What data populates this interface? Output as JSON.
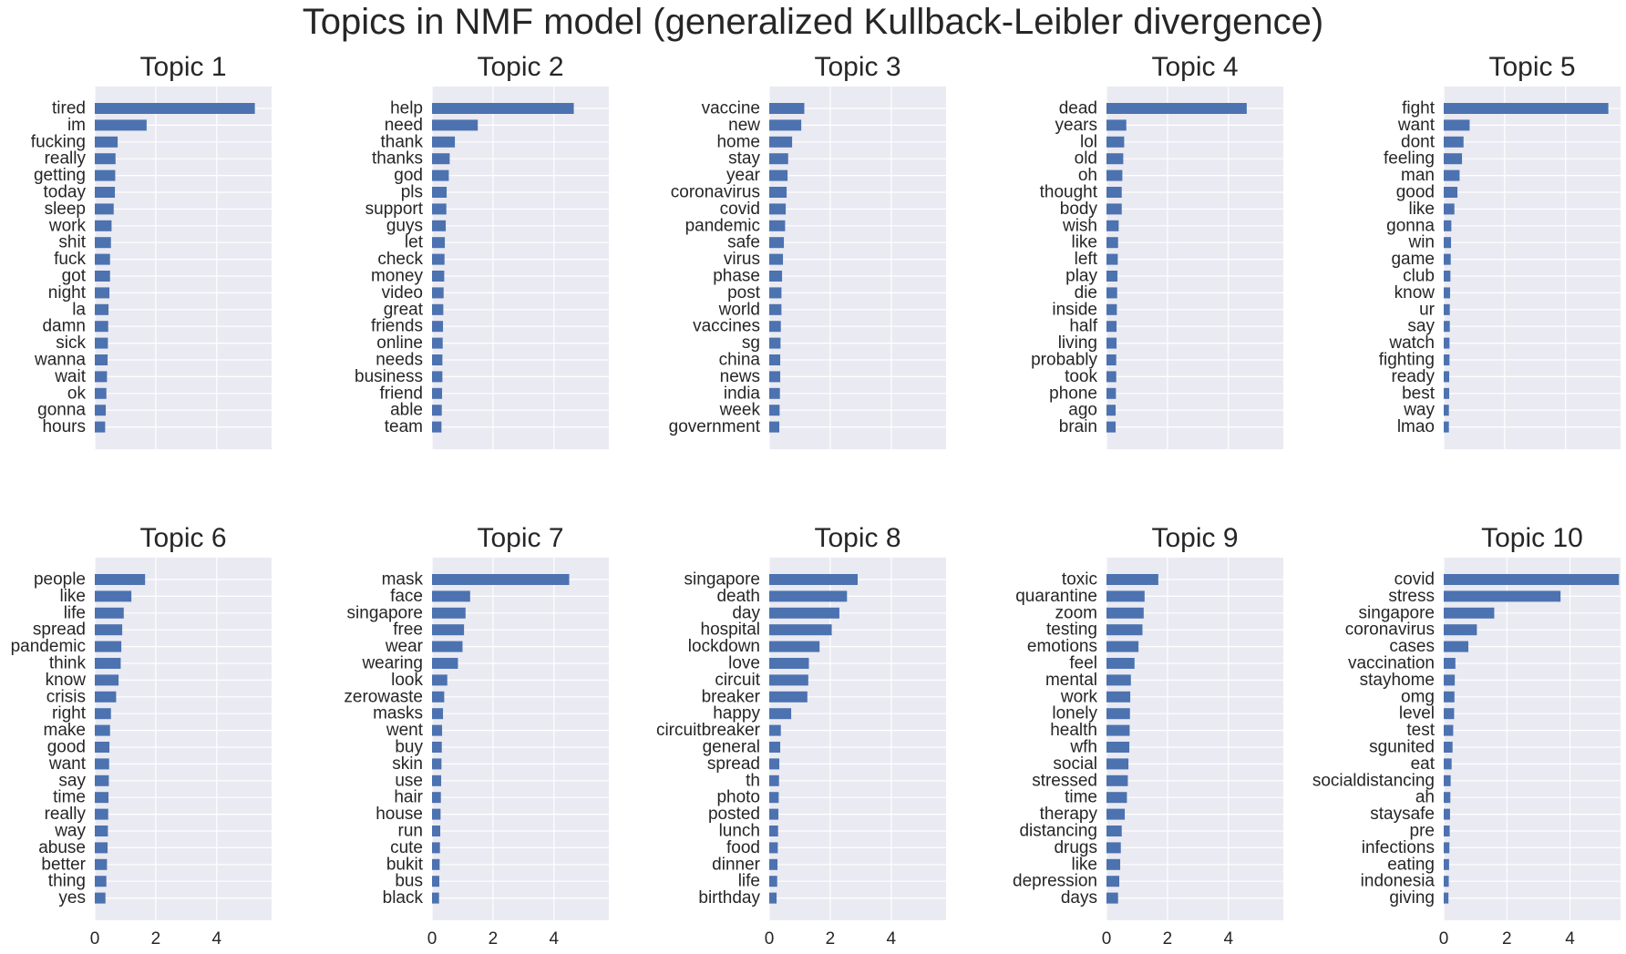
{
  "figure": {
    "title": "Topics in NMF model (generalized Kullback-Leibler divergence)"
  },
  "style": {
    "bar_color": "#4c72b0",
    "panel_bg": "#eaeaf2",
    "grid_color": "#ffffff",
    "text_color": "#262626"
  },
  "chart_data": [
    {
      "type": "bar",
      "orientation": "horizontal",
      "title": "Topic 1",
      "xlim": [
        0,
        5.8
      ],
      "grid": true,
      "x_ticks": [
        0,
        2,
        4
      ],
      "show_x_tick_labels": false,
      "categories": [
        "tired",
        "im",
        "fucking",
        "really",
        "getting",
        "today",
        "sleep",
        "work",
        "shit",
        "fuck",
        "got",
        "night",
        "la",
        "damn",
        "sick",
        "wanna",
        "wait",
        "ok",
        "gonna",
        "hours"
      ],
      "values": [
        5.25,
        1.7,
        0.75,
        0.68,
        0.67,
        0.66,
        0.62,
        0.55,
        0.53,
        0.5,
        0.5,
        0.48,
        0.45,
        0.44,
        0.43,
        0.42,
        0.4,
        0.38,
        0.36,
        0.34
      ]
    },
    {
      "type": "bar",
      "orientation": "horizontal",
      "title": "Topic 2",
      "xlim": [
        0,
        5.8
      ],
      "grid": true,
      "x_ticks": [
        0,
        2,
        4
      ],
      "show_x_tick_labels": false,
      "categories": [
        "help",
        "need",
        "thank",
        "thanks",
        "god",
        "pls",
        "support",
        "guys",
        "let",
        "check",
        "money",
        "video",
        "great",
        "friends",
        "online",
        "needs",
        "business",
        "friend",
        "able",
        "team"
      ],
      "values": [
        4.65,
        1.5,
        0.75,
        0.58,
        0.55,
        0.48,
        0.47,
        0.45,
        0.42,
        0.41,
        0.4,
        0.38,
        0.37,
        0.36,
        0.35,
        0.34,
        0.34,
        0.33,
        0.32,
        0.31
      ]
    },
    {
      "type": "bar",
      "orientation": "horizontal",
      "title": "Topic 3",
      "xlim": [
        0,
        5.8
      ],
      "grid": true,
      "x_ticks": [
        0,
        2,
        4
      ],
      "show_x_tick_labels": false,
      "categories": [
        "vaccine",
        "new",
        "home",
        "stay",
        "year",
        "coronavirus",
        "covid",
        "pandemic",
        "safe",
        "virus",
        "phase",
        "post",
        "world",
        "vaccines",
        "sg",
        "china",
        "news",
        "india",
        "week",
        "government"
      ],
      "values": [
        1.15,
        1.05,
        0.75,
        0.62,
        0.6,
        0.57,
        0.54,
        0.52,
        0.48,
        0.45,
        0.42,
        0.4,
        0.4,
        0.38,
        0.37,
        0.36,
        0.36,
        0.35,
        0.34,
        0.33
      ]
    },
    {
      "type": "bar",
      "orientation": "horizontal",
      "title": "Topic 4",
      "xlim": [
        0,
        5.8
      ],
      "grid": true,
      "x_ticks": [
        0,
        2,
        4
      ],
      "show_x_tick_labels": false,
      "categories": [
        "dead",
        "years",
        "lol",
        "old",
        "oh",
        "thought",
        "body",
        "wish",
        "like",
        "left",
        "play",
        "die",
        "inside",
        "half",
        "living",
        "probably",
        "took",
        "phone",
        "ago",
        "brain"
      ],
      "values": [
        4.6,
        0.65,
        0.58,
        0.55,
        0.52,
        0.5,
        0.5,
        0.4,
        0.38,
        0.37,
        0.36,
        0.35,
        0.34,
        0.33,
        0.33,
        0.32,
        0.32,
        0.31,
        0.3,
        0.3
      ]
    },
    {
      "type": "bar",
      "orientation": "horizontal",
      "title": "Topic 5",
      "xlim": [
        0,
        5.8
      ],
      "grid": true,
      "x_ticks": [
        0,
        2,
        4
      ],
      "show_x_tick_labels": false,
      "categories": [
        "fight",
        "want",
        "dont",
        "feeling",
        "man",
        "good",
        "like",
        "gonna",
        "win",
        "game",
        "club",
        "know",
        "ur",
        "say",
        "watch",
        "fighting",
        "ready",
        "best",
        "way",
        "lmao"
      ],
      "values": [
        5.4,
        0.85,
        0.65,
        0.6,
        0.52,
        0.45,
        0.35,
        0.25,
        0.24,
        0.23,
        0.22,
        0.21,
        0.2,
        0.2,
        0.19,
        0.19,
        0.18,
        0.18,
        0.17,
        0.17
      ]
    },
    {
      "type": "bar",
      "orientation": "horizontal",
      "title": "Topic 6",
      "xlim": [
        0,
        5.8
      ],
      "grid": true,
      "x_ticks": [
        0,
        2,
        4
      ],
      "show_x_tick_labels": true,
      "categories": [
        "people",
        "like",
        "life",
        "spread",
        "pandemic",
        "think",
        "know",
        "crisis",
        "right",
        "make",
        "good",
        "want",
        "say",
        "time",
        "really",
        "way",
        "abuse",
        "better",
        "thing",
        "yes"
      ],
      "values": [
        1.65,
        1.2,
        0.95,
        0.9,
        0.87,
        0.85,
        0.78,
        0.7,
        0.53,
        0.5,
        0.48,
        0.47,
        0.46,
        0.45,
        0.44,
        0.43,
        0.42,
        0.4,
        0.38,
        0.35
      ]
    },
    {
      "type": "bar",
      "orientation": "horizontal",
      "title": "Topic 7",
      "xlim": [
        0,
        5.8
      ],
      "grid": true,
      "x_ticks": [
        0,
        2,
        4
      ],
      "show_x_tick_labels": true,
      "categories": [
        "mask",
        "face",
        "singapore",
        "free",
        "wear",
        "wearing",
        "look",
        "zerowaste",
        "masks",
        "went",
        "buy",
        "skin",
        "use",
        "hair",
        "house",
        "run",
        "cute",
        "bukit",
        "bus",
        "black"
      ],
      "values": [
        4.5,
        1.25,
        1.1,
        1.05,
        1.0,
        0.85,
        0.5,
        0.4,
        0.36,
        0.33,
        0.32,
        0.31,
        0.3,
        0.29,
        0.28,
        0.27,
        0.26,
        0.25,
        0.24,
        0.23
      ]
    },
    {
      "type": "bar",
      "orientation": "horizontal",
      "title": "Topic 8",
      "xlim": [
        0,
        5.8
      ],
      "grid": true,
      "x_ticks": [
        0,
        2,
        4
      ],
      "show_x_tick_labels": true,
      "categories": [
        "singapore",
        "death",
        "day",
        "hospital",
        "lockdown",
        "love",
        "circuit",
        "breaker",
        "happy",
        "circuitbreaker",
        "general",
        "spread",
        "th",
        "photo",
        "posted",
        "lunch",
        "food",
        "dinner",
        "life",
        "birthday"
      ],
      "values": [
        2.9,
        2.55,
        2.3,
        2.05,
        1.65,
        1.3,
        1.28,
        1.25,
        0.72,
        0.38,
        0.36,
        0.33,
        0.32,
        0.31,
        0.3,
        0.29,
        0.28,
        0.27,
        0.26,
        0.24
      ]
    },
    {
      "type": "bar",
      "orientation": "horizontal",
      "title": "Topic 9",
      "xlim": [
        0,
        5.8
      ],
      "grid": true,
      "x_ticks": [
        0,
        2,
        4
      ],
      "show_x_tick_labels": true,
      "categories": [
        "toxic",
        "quarantine",
        "zoom",
        "testing",
        "emotions",
        "feel",
        "mental",
        "work",
        "lonely",
        "health",
        "wfh",
        "social",
        "stressed",
        "time",
        "therapy",
        "distancing",
        "drugs",
        "like",
        "depression",
        "days"
      ],
      "values": [
        1.7,
        1.25,
        1.22,
        1.18,
        1.05,
        0.92,
        0.8,
        0.78,
        0.77,
        0.76,
        0.75,
        0.72,
        0.7,
        0.67,
        0.6,
        0.5,
        0.47,
        0.45,
        0.42,
        0.38
      ]
    },
    {
      "type": "bar",
      "orientation": "horizontal",
      "title": "Topic 10",
      "xlim": [
        0,
        5.6
      ],
      "grid": true,
      "x_ticks": [
        0,
        2,
        4
      ],
      "show_x_tick_labels": true,
      "categories": [
        "covid",
        "stress",
        "singapore",
        "coronavirus",
        "cases",
        "vaccination",
        "stayhome",
        "omg",
        "level",
        "test",
        "sgunited",
        "eat",
        "socialdistancing",
        "ah",
        "staysafe",
        "pre",
        "infections",
        "eating",
        "indonesia",
        "giving"
      ],
      "values": [
        5.55,
        3.7,
        1.6,
        1.05,
        0.78,
        0.37,
        0.35,
        0.34,
        0.33,
        0.3,
        0.28,
        0.25,
        0.22,
        0.21,
        0.2,
        0.19,
        0.18,
        0.17,
        0.16,
        0.15
      ]
    }
  ]
}
